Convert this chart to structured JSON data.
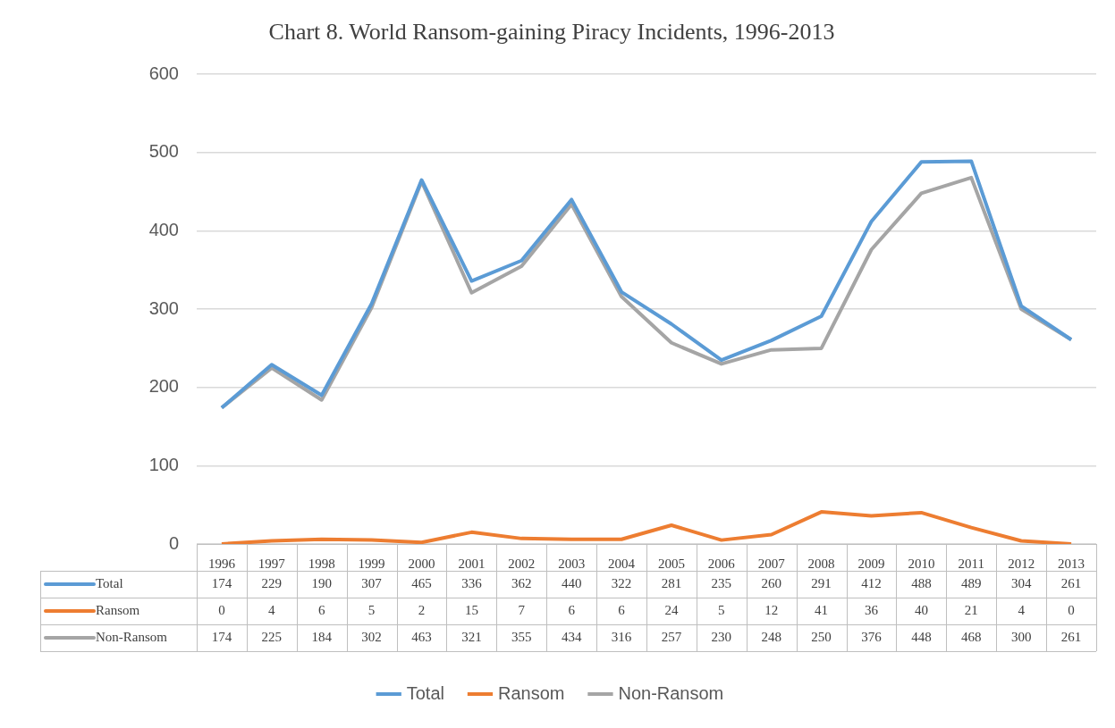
{
  "chart_data": {
    "type": "line",
    "title": "Chart 8. World Ransom-gaining Piracy Incidents, 1996-2013",
    "categories": [
      "1996",
      "1997",
      "1998",
      "1999",
      "2000",
      "2001",
      "2002",
      "2003",
      "2004",
      "2005",
      "2006",
      "2007",
      "2008",
      "2009",
      "2010",
      "2011",
      "2012",
      "2013"
    ],
    "series": [
      {
        "name": "Total",
        "color": "#5b9bd5",
        "values": [
          174,
          229,
          190,
          307,
          465,
          336,
          362,
          440,
          322,
          281,
          235,
          260,
          291,
          412,
          488,
          489,
          304,
          261
        ]
      },
      {
        "name": "Ransom",
        "color": "#ed7d31",
        "values": [
          0,
          4,
          6,
          5,
          2,
          15,
          7,
          6,
          6,
          24,
          5,
          12,
          41,
          36,
          40,
          21,
          4,
          0
        ]
      },
      {
        "name": "Non-Ransom",
        "color": "#a5a5a5",
        "values": [
          174,
          225,
          184,
          302,
          463,
          321,
          355,
          434,
          316,
          257,
          230,
          248,
          250,
          376,
          448,
          468,
          300,
          261
        ]
      }
    ],
    "ylim": [
      0,
      600
    ],
    "yticks": [
      0,
      100,
      200,
      300,
      400,
      500,
      600
    ],
    "grid": "y",
    "legend": "bottom",
    "data_labels": true,
    "marker": "none",
    "line_style": "solid"
  }
}
